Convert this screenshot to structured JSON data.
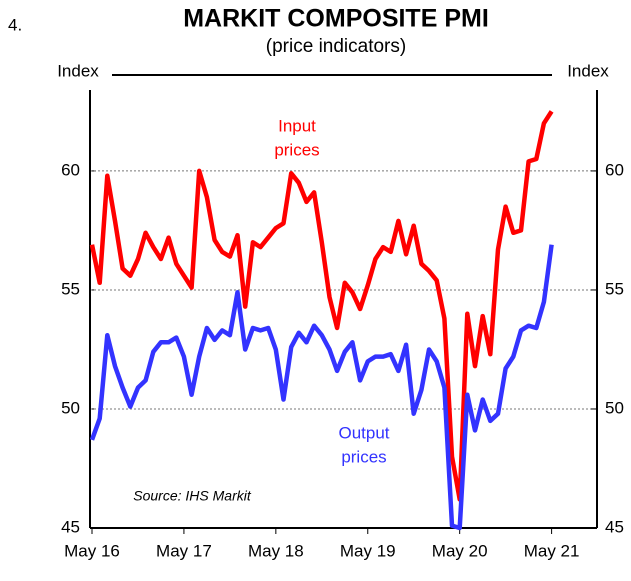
{
  "chart_data": {
    "type": "line",
    "number": "4.",
    "title": "MARKIT COMPOSITE PMI",
    "subtitle": "(price indicators)",
    "ylabel": "Index",
    "y2label": "Index",
    "source": "Source: IHS Markit",
    "categories": [
      "May 16",
      null,
      null,
      null,
      null,
      null,
      null,
      null,
      null,
      null,
      null,
      null,
      "May 17",
      null,
      null,
      null,
      null,
      null,
      null,
      null,
      null,
      null,
      null,
      null,
      "May 18",
      null,
      null,
      null,
      null,
      null,
      null,
      null,
      null,
      null,
      null,
      null,
      "May 19",
      null,
      null,
      null,
      null,
      null,
      null,
      null,
      null,
      null,
      null,
      null,
      "May 20",
      null,
      null,
      null,
      null,
      null,
      null,
      null,
      null,
      null,
      null,
      null,
      "May 21"
    ],
    "ylim": [
      45,
      63.4
    ],
    "yticks": [
      45,
      50,
      55,
      60
    ],
    "y2lim": [
      45,
      63.4
    ],
    "y2ticks": [
      45,
      50,
      55,
      60
    ],
    "grid": true,
    "series": [
      {
        "label_lines": [
          "Input",
          "prices"
        ],
        "color": "#ff0000",
        "values": [
          56.9,
          55.3,
          59.8,
          57.9,
          55.9,
          55.6,
          56.3,
          57.4,
          56.8,
          56.3,
          57.2,
          56.1,
          55.6,
          55.1,
          60.0,
          58.9,
          57.1,
          56.6,
          56.4,
          57.3,
          54.3,
          57.0,
          56.8,
          57.2,
          57.6,
          57.8,
          59.9,
          59.5,
          58.7,
          59.1,
          57.0,
          54.7,
          53.4,
          55.3,
          54.9,
          54.2,
          55.2,
          56.3,
          56.8,
          56.6,
          57.9,
          56.5,
          57.7,
          56.1,
          55.8,
          55.4,
          53.8,
          48.0,
          46.2,
          54.0,
          51.8,
          53.9,
          52.3,
          56.7,
          58.5,
          57.4,
          57.5,
          60.4,
          60.5,
          62.0,
          62.5
        ]
      },
      {
        "label_lines": [
          "Output",
          "prices"
        ],
        "color": "#3333ff",
        "values": [
          48.7,
          49.6,
          53.1,
          51.8,
          50.9,
          50.1,
          50.9,
          51.2,
          52.4,
          52.8,
          52.8,
          53.0,
          52.2,
          50.6,
          52.2,
          53.4,
          52.9,
          53.3,
          53.1,
          54.9,
          52.5,
          53.4,
          53.3,
          53.4,
          52.5,
          50.4,
          52.6,
          53.2,
          52.8,
          53.5,
          53.1,
          52.5,
          51.6,
          52.4,
          52.8,
          51.2,
          52.0,
          52.2,
          52.2,
          52.3,
          51.6,
          52.7,
          49.8,
          50.8,
          52.5,
          52.0,
          50.9,
          45.1,
          45.0,
          50.6,
          49.1,
          50.4,
          49.5,
          49.8,
          51.7,
          52.2,
          53.3,
          53.5,
          53.4,
          54.5,
          56.9
        ]
      }
    ]
  }
}
